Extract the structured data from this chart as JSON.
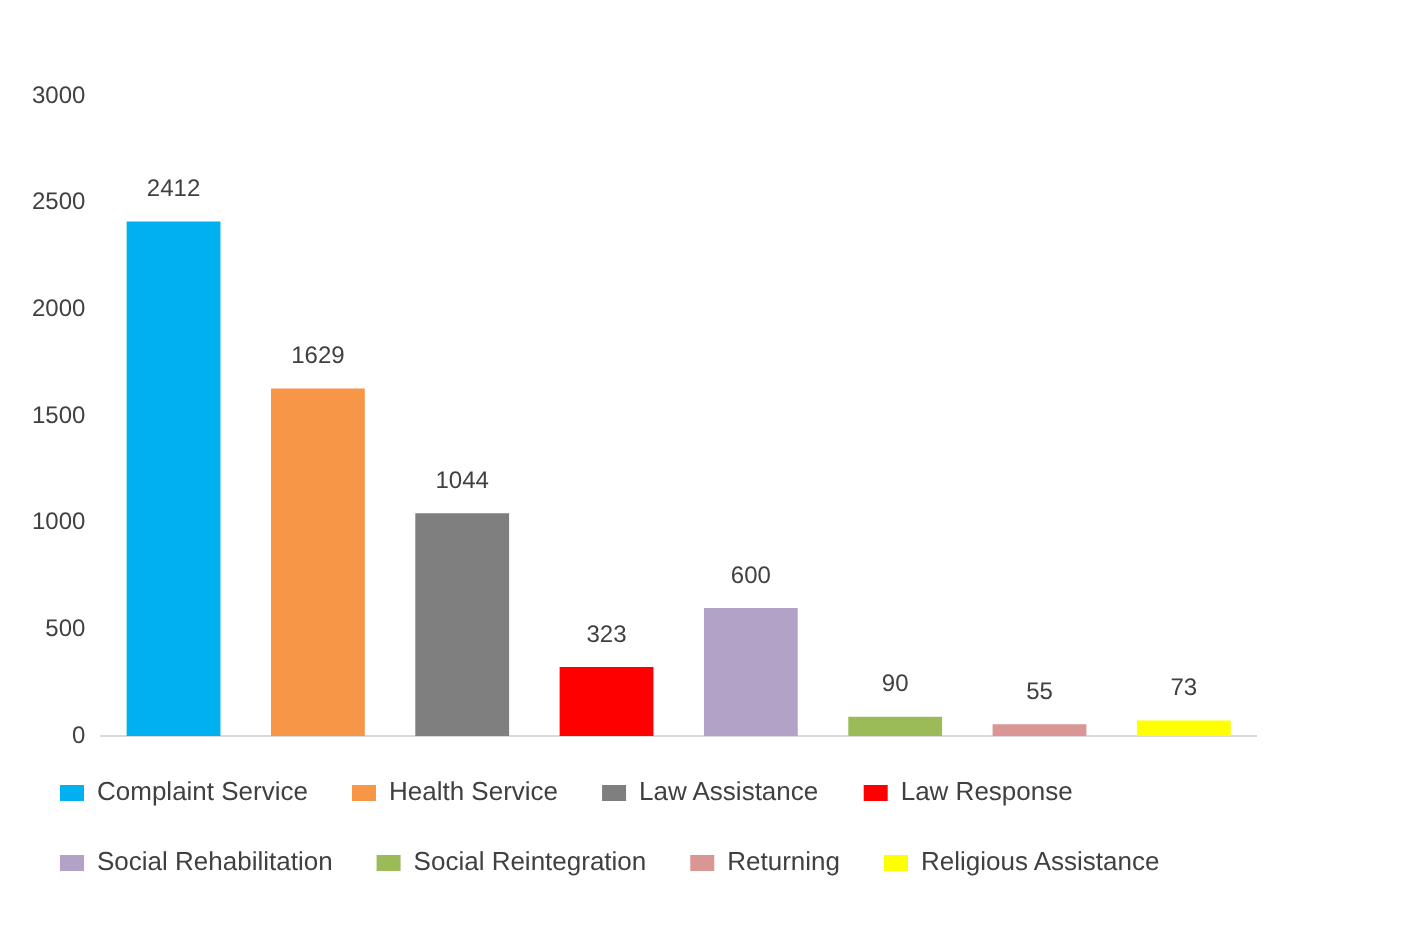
{
  "chart_data": {
    "type": "bar",
    "categories": [
      null,
      null,
      null,
      null,
      null,
      null,
      null,
      null
    ],
    "series": [
      {
        "name": "Complaint Service",
        "color": "#00b0f0",
        "values": [
          2412,
          null,
          null,
          null,
          null,
          null,
          null,
          null
        ]
      },
      {
        "name": "Health Service",
        "color": "#f79646",
        "values": [
          null,
          1629,
          null,
          null,
          null,
          null,
          null,
          null
        ]
      },
      {
        "name": "Law Assistance",
        "color": "#7f7f7f",
        "values": [
          null,
          null,
          1044,
          null,
          null,
          null,
          null,
          null
        ]
      },
      {
        "name": "Law Response",
        "color": "#ff0000",
        "values": [
          null,
          null,
          null,
          323,
          null,
          null,
          null,
          null
        ]
      },
      {
        "name": "Social Rehabilitation",
        "color": "#b3a2c7",
        "values": [
          null,
          null,
          null,
          null,
          600,
          null,
          null,
          null
        ]
      },
      {
        "name": "Social Reintegration",
        "color": "#9bbb59",
        "values": [
          null,
          null,
          null,
          null,
          null,
          90,
          null,
          null
        ]
      },
      {
        "name": "Returning",
        "color": "#d99694",
        "values": [
          null,
          null,
          null,
          null,
          null,
          null,
          55,
          null
        ]
      },
      {
        "name": "Religious Assistance",
        "color": "#ffff00",
        "values": [
          null,
          null,
          null,
          null,
          null,
          null,
          null,
          73
        ]
      }
    ],
    "ylim": [
      0,
      3000
    ],
    "yticks": [
      0,
      500,
      1000,
      1500,
      2000,
      2500,
      3000
    ],
    "grid": false,
    "legend": "bottom",
    "tick_labels": "y",
    "data_labels": true
  }
}
